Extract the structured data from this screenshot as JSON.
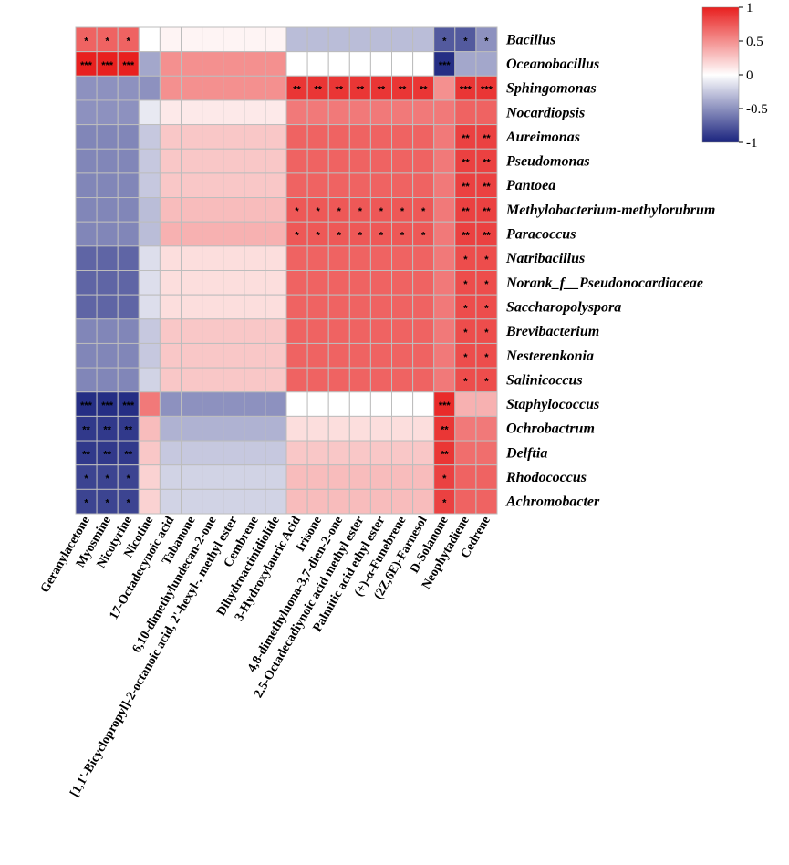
{
  "chart_data": {
    "type": "heatmap",
    "title": "",
    "rows": [
      "Bacillus",
      "Oceanobacillus",
      "Sphingomonas",
      "Nocardiopsis",
      "Aureimonas",
      "Pseudomonas",
      "Pantoea",
      "Methylobacterium-methylorubrum",
      "Paracoccus",
      "Natribacillus",
      "Norank_f__Pseudonocardiaceae",
      "Saccharopolyspora",
      "Brevibacterium",
      "Nesterenkonia",
      "Salinicoccus",
      "Staphylococcus",
      "Ochrobactrum",
      "Delftia",
      "Rhodococcus",
      "Achromobacter"
    ],
    "columns": [
      "Geranylacetone",
      "Myosmine",
      "Nicotyrine",
      "Nicotine",
      "17-Octadecynoic acid",
      "Tabanone",
      "6,10-dimethylundecan-2-one",
      "[1,1'-Bicyclopropyl]-2-octanoic acid, 2'-hexyl-, methyl ester",
      "Cembrene",
      "Dihydroactinidiolide",
      "3-Hydroxylauric Acid",
      "Irisone",
      "4,8-dimethylnona-3,7-dien-2-one",
      "2,5-Octadecadiynoic acid methyl ester",
      "Palmitic acid ethyl ester",
      "(+)-α-Funebrene",
      "(2Z,6E)-Farnesol",
      "D-Solanone",
      "Neophytadiene",
      "Cedrene"
    ],
    "values": [
      [
        0.7,
        0.7,
        0.7,
        0.0,
        0.05,
        0.05,
        0.05,
        0.05,
        0.05,
        0.05,
        -0.3,
        -0.3,
        -0.3,
        -0.3,
        -0.3,
        -0.3,
        -0.3,
        -0.75,
        -0.75,
        -0.5
      ],
      [
        1.0,
        1.0,
        1.0,
        -0.4,
        0.5,
        0.5,
        0.5,
        0.5,
        0.5,
        0.5,
        0.0,
        0.0,
        0.0,
        0.0,
        0.0,
        0.0,
        0.0,
        -0.95,
        -0.4,
        -0.4
      ],
      [
        -0.5,
        -0.5,
        -0.5,
        -0.5,
        0.5,
        0.5,
        0.5,
        0.5,
        0.5,
        0.5,
        0.9,
        0.9,
        0.9,
        0.9,
        0.9,
        0.9,
        0.9,
        0.5,
        0.9,
        0.9
      ],
      [
        -0.5,
        -0.5,
        -0.5,
        -0.1,
        0.1,
        0.1,
        0.1,
        0.1,
        0.1,
        0.1,
        0.6,
        0.6,
        0.6,
        0.6,
        0.6,
        0.6,
        0.6,
        0.6,
        0.7,
        0.7
      ],
      [
        -0.55,
        -0.55,
        -0.55,
        -0.25,
        0.25,
        0.25,
        0.25,
        0.25,
        0.25,
        0.25,
        0.7,
        0.7,
        0.7,
        0.7,
        0.7,
        0.7,
        0.7,
        0.6,
        0.85,
        0.85
      ],
      [
        -0.55,
        -0.55,
        -0.55,
        -0.25,
        0.25,
        0.25,
        0.25,
        0.25,
        0.25,
        0.25,
        0.7,
        0.7,
        0.7,
        0.7,
        0.7,
        0.7,
        0.7,
        0.6,
        0.85,
        0.85
      ],
      [
        -0.55,
        -0.55,
        -0.55,
        -0.25,
        0.25,
        0.25,
        0.25,
        0.25,
        0.25,
        0.25,
        0.7,
        0.7,
        0.7,
        0.7,
        0.7,
        0.7,
        0.7,
        0.6,
        0.85,
        0.85
      ],
      [
        -0.55,
        -0.55,
        -0.55,
        -0.3,
        0.3,
        0.3,
        0.3,
        0.3,
        0.3,
        0.3,
        0.75,
        0.75,
        0.75,
        0.75,
        0.75,
        0.75,
        0.75,
        0.6,
        0.85,
        0.85
      ],
      [
        -0.55,
        -0.55,
        -0.55,
        -0.3,
        0.35,
        0.35,
        0.35,
        0.35,
        0.35,
        0.35,
        0.75,
        0.75,
        0.75,
        0.75,
        0.75,
        0.75,
        0.75,
        0.6,
        0.85,
        0.85
      ],
      [
        -0.7,
        -0.7,
        -0.7,
        -0.15,
        0.15,
        0.15,
        0.15,
        0.15,
        0.15,
        0.15,
        0.7,
        0.7,
        0.7,
        0.7,
        0.7,
        0.7,
        0.7,
        0.6,
        0.8,
        0.8
      ],
      [
        -0.7,
        -0.7,
        -0.7,
        -0.15,
        0.15,
        0.15,
        0.15,
        0.15,
        0.15,
        0.15,
        0.7,
        0.7,
        0.7,
        0.7,
        0.7,
        0.7,
        0.7,
        0.6,
        0.8,
        0.8
      ],
      [
        -0.7,
        -0.7,
        -0.7,
        -0.15,
        0.15,
        0.15,
        0.15,
        0.15,
        0.15,
        0.15,
        0.7,
        0.7,
        0.7,
        0.7,
        0.7,
        0.7,
        0.7,
        0.6,
        0.8,
        0.8
      ],
      [
        -0.55,
        -0.55,
        -0.55,
        -0.25,
        0.25,
        0.25,
        0.25,
        0.25,
        0.25,
        0.25,
        0.7,
        0.7,
        0.7,
        0.7,
        0.7,
        0.7,
        0.7,
        0.6,
        0.8,
        0.8
      ],
      [
        -0.55,
        -0.55,
        -0.55,
        -0.25,
        0.25,
        0.25,
        0.25,
        0.25,
        0.25,
        0.25,
        0.7,
        0.7,
        0.7,
        0.7,
        0.7,
        0.7,
        0.7,
        0.6,
        0.8,
        0.8
      ],
      [
        -0.55,
        -0.55,
        -0.55,
        -0.2,
        0.25,
        0.25,
        0.25,
        0.25,
        0.25,
        0.25,
        0.7,
        0.7,
        0.7,
        0.7,
        0.7,
        0.7,
        0.7,
        0.6,
        0.8,
        0.8
      ],
      [
        -0.95,
        -0.95,
        -0.95,
        0.6,
        -0.5,
        -0.5,
        -0.5,
        -0.5,
        -0.5,
        -0.5,
        0.0,
        0.0,
        0.0,
        0.0,
        0.0,
        0.0,
        0.0,
        0.95,
        0.35,
        0.35
      ],
      [
        -0.9,
        -0.9,
        -0.9,
        0.3,
        -0.35,
        -0.35,
        -0.35,
        -0.35,
        -0.35,
        -0.35,
        0.15,
        0.15,
        0.15,
        0.15,
        0.15,
        0.15,
        0.15,
        0.9,
        0.6,
        0.6
      ],
      [
        -0.9,
        -0.9,
        -0.9,
        0.25,
        -0.25,
        -0.25,
        -0.25,
        -0.25,
        -0.25,
        -0.25,
        0.25,
        0.25,
        0.25,
        0.25,
        0.25,
        0.25,
        0.25,
        0.9,
        0.65,
        0.65
      ],
      [
        -0.85,
        -0.85,
        -0.85,
        0.2,
        -0.2,
        -0.2,
        -0.2,
        -0.2,
        -0.2,
        -0.2,
        0.3,
        0.3,
        0.3,
        0.3,
        0.3,
        0.3,
        0.3,
        0.85,
        0.7,
        0.7
      ],
      [
        -0.85,
        -0.85,
        -0.85,
        0.2,
        -0.2,
        -0.2,
        -0.2,
        -0.2,
        -0.2,
        -0.2,
        0.3,
        0.3,
        0.3,
        0.3,
        0.3,
        0.3,
        0.3,
        0.85,
        0.7,
        0.7
      ]
    ],
    "significance": [
      [
        "*",
        "*",
        "*",
        "",
        "",
        "",
        "",
        "",
        "",
        "",
        "",
        "",
        "",
        "",
        "",
        "",
        "",
        "*",
        "*",
        "*"
      ],
      [
        "***",
        "***",
        "***",
        "",
        "",
        "",
        "",
        "",
        "",
        "",
        "",
        "",
        "",
        "",
        "",
        "",
        "",
        "***",
        "",
        ""
      ],
      [
        "",
        "",
        "",
        "",
        "",
        "",
        "",
        "",
        "",
        "",
        "**",
        "**",
        "**",
        "**",
        "**",
        "**",
        "**",
        "",
        "***",
        "***"
      ],
      [
        "",
        "",
        "",
        "",
        "",
        "",
        "",
        "",
        "",
        "",
        "",
        "",
        "",
        "",
        "",
        "",
        "",
        "",
        "",
        ""
      ],
      [
        "",
        "",
        "",
        "",
        "",
        "",
        "",
        "",
        "",
        "",
        "",
        "",
        "",
        "",
        "",
        "",
        "",
        "",
        "**",
        "**"
      ],
      [
        "",
        "",
        "",
        "",
        "",
        "",
        "",
        "",
        "",
        "",
        "",
        "",
        "",
        "",
        "",
        "",
        "",
        "",
        "**",
        "**"
      ],
      [
        "",
        "",
        "",
        "",
        "",
        "",
        "",
        "",
        "",
        "",
        "",
        "",
        "",
        "",
        "",
        "",
        "",
        "",
        "**",
        "**"
      ],
      [
        "",
        "",
        "",
        "",
        "",
        "",
        "",
        "",
        "",
        "",
        "*",
        "*",
        "*",
        "*",
        "*",
        "*",
        "*",
        "",
        "**",
        "**"
      ],
      [
        "",
        "",
        "",
        "",
        "",
        "",
        "",
        "",
        "",
        "",
        "*",
        "*",
        "*",
        "*",
        "*",
        "*",
        "*",
        "",
        "**",
        "**"
      ],
      [
        "",
        "",
        "",
        "",
        "",
        "",
        "",
        "",
        "",
        "",
        "",
        "",
        "",
        "",
        "",
        "",
        "",
        "",
        "*",
        "*"
      ],
      [
        "",
        "",
        "",
        "",
        "",
        "",
        "",
        "",
        "",
        "",
        "",
        "",
        "",
        "",
        "",
        "",
        "",
        "",
        "*",
        "*"
      ],
      [
        "",
        "",
        "",
        "",
        "",
        "",
        "",
        "",
        "",
        "",
        "",
        "",
        "",
        "",
        "",
        "",
        "",
        "",
        "*",
        "*"
      ],
      [
        "",
        "",
        "",
        "",
        "",
        "",
        "",
        "",
        "",
        "",
        "",
        "",
        "",
        "",
        "",
        "",
        "",
        "",
        "*",
        "*"
      ],
      [
        "",
        "",
        "",
        "",
        "",
        "",
        "",
        "",
        "",
        "",
        "",
        "",
        "",
        "",
        "",
        "",
        "",
        "",
        "*",
        "*"
      ],
      [
        "",
        "",
        "",
        "",
        "",
        "",
        "",
        "",
        "",
        "",
        "",
        "",
        "",
        "",
        "",
        "",
        "",
        "",
        "*",
        "*"
      ],
      [
        "***",
        "***",
        "***",
        "",
        "",
        "",
        "",
        "",
        "",
        "",
        "",
        "",
        "",
        "",
        "",
        "",
        "",
        "***",
        "",
        ""
      ],
      [
        "**",
        "**",
        "**",
        "",
        "",
        "",
        "",
        "",
        "",
        "",
        "",
        "",
        "",
        "",
        "",
        "",
        "",
        "**",
        "",
        ""
      ],
      [
        "**",
        "**",
        "**",
        "",
        "",
        "",
        "",
        "",
        "",
        "",
        "",
        "",
        "",
        "",
        "",
        "",
        "",
        "**",
        "",
        ""
      ],
      [
        "*",
        "*",
        "*",
        "",
        "",
        "",
        "",
        "",
        "",
        "",
        "",
        "",
        "",
        "",
        "",
        "",
        "",
        "*",
        "",
        ""
      ],
      [
        "*",
        "*",
        "*",
        "",
        "",
        "",
        "",
        "",
        "",
        "",
        "",
        "",
        "",
        "",
        "",
        "",
        "",
        "*",
        "",
        ""
      ]
    ],
    "color_scale": {
      "min": -1,
      "max": 1,
      "low": "#1a237e",
      "mid": "#ffffff",
      "high": "#e8201f"
    },
    "legend_ticks": [
      {
        "value": 1,
        "label": "1"
      },
      {
        "value": 0.5,
        "label": "0.5"
      },
      {
        "value": 0,
        "label": "0"
      },
      {
        "value": -0.5,
        "label": "-0.5"
      },
      {
        "value": -1,
        "label": "-1"
      }
    ],
    "legend_position": "top-right"
  }
}
